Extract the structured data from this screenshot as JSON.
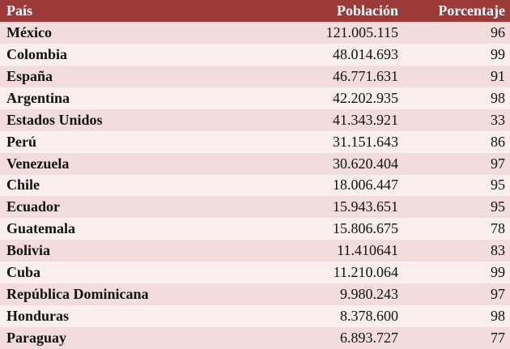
{
  "table": {
    "header": [
      "País",
      "Población",
      "Porcentaje"
    ],
    "rows": [
      [
        "México",
        "121.005.115",
        96
      ],
      [
        "Colombia",
        "48.014.693",
        99
      ],
      [
        "España",
        "46.771.631",
        91
      ],
      [
        "Argentina",
        "42.202.935",
        98
      ],
      [
        "Estados Unidos",
        "41.343.921",
        33
      ],
      [
        "Perú",
        "31.151.643",
        86
      ],
      [
        "Venezuela",
        "30.620.404",
        97
      ],
      [
        "Chile",
        "18.006.447",
        95
      ],
      [
        "Ecuador",
        "15.943.651",
        95
      ],
      [
        "Guatemala",
        "15.806.675",
        78
      ],
      [
        "Bolivia",
        "11.410641",
        83
      ],
      [
        "Cuba",
        "11.210.064",
        99
      ],
      [
        "República Dominicana",
        "9.980.243",
        97
      ],
      [
        "Honduras",
        "8.378.600",
        98
      ],
      [
        "Paraguay",
        "6.893.727",
        77
      ]
    ]
  }
}
